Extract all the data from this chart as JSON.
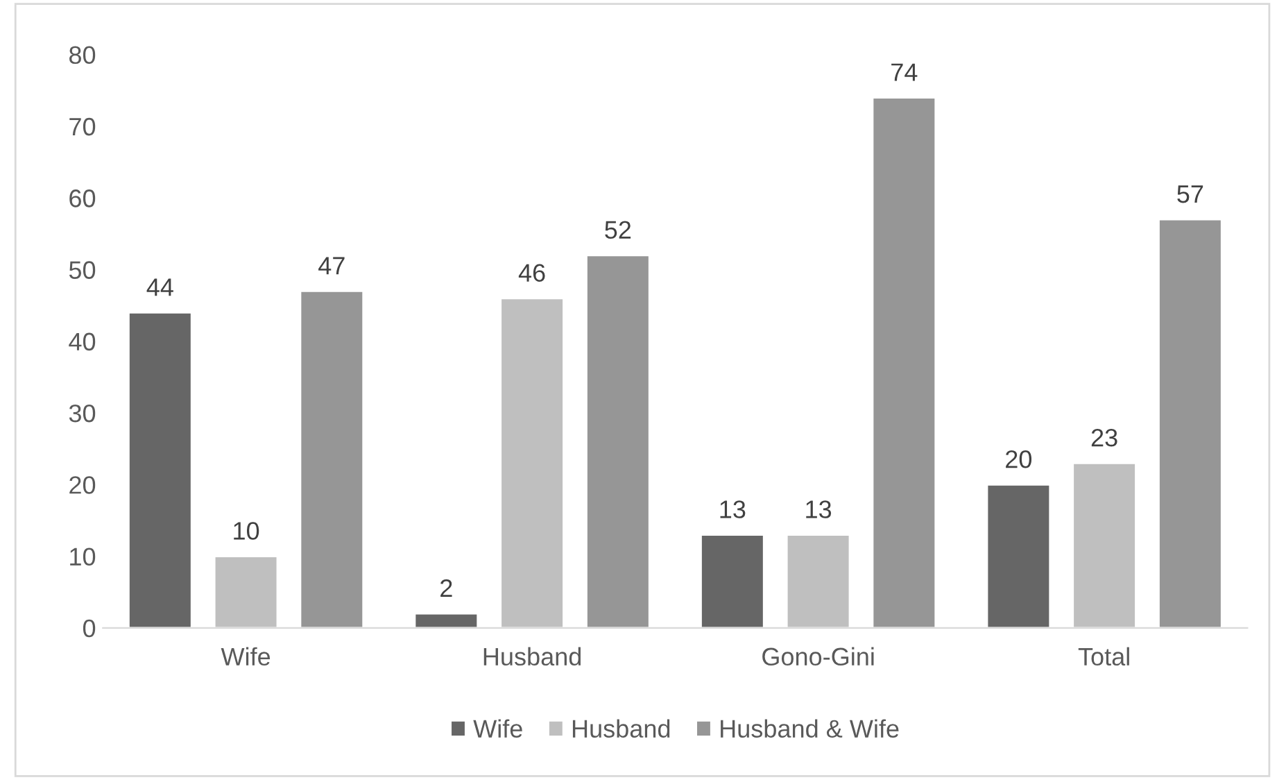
{
  "chart_data": {
    "type": "bar",
    "categories": [
      "Wife",
      "Husband",
      "Gono-Gini",
      "Total"
    ],
    "series": [
      {
        "name": "Wife",
        "color": "#666666",
        "values": [
          44,
          2,
          13,
          20
        ]
      },
      {
        "name": "Husband",
        "color": "#bfbfbf",
        "values": [
          10,
          46,
          13,
          23
        ]
      },
      {
        "name": "Husband & Wife",
        "color": "#969696",
        "values": [
          47,
          52,
          74,
          57
        ]
      }
    ],
    "ylim": [
      0,
      80
    ],
    "yticks": [
      0,
      10,
      20,
      30,
      40,
      50,
      60,
      70,
      80
    ],
    "data_labels": true,
    "grid": false,
    "legend": "bottom"
  }
}
